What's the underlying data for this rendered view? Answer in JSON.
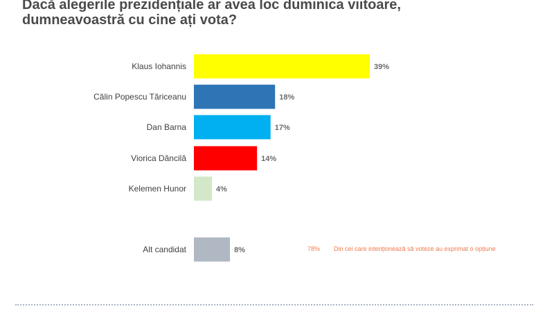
{
  "chart_data": {
    "type": "bar",
    "orientation": "horizontal",
    "title": "Dacă alegerile prezidențiale ar avea loc duminica viitoare, dumneavoastră cu cine ați vota?",
    "title_lines": [
      "Dacă alegerile prezidențiale ar avea loc duminica viitoare,",
      "dumneavoastră cu cine ați vota?"
    ],
    "categories": [
      "Klaus Iohannis",
      "Călin Popescu Tăriceanu",
      "Dan Barna",
      "Viorica Dăncilă",
      "Kelemen Hunor",
      "Alt candidat"
    ],
    "values": [
      39,
      18,
      17,
      14,
      4,
      8
    ],
    "value_labels": [
      "39%",
      "18%",
      "17%",
      "14%",
      "4%",
      "8%"
    ],
    "colors": [
      "#ffff00",
      "#2e75b6",
      "#00b0f0",
      "#ff0000",
      "#d3e8c8",
      "#b0b8c3"
    ],
    "unit": "%",
    "xlim": [
      0,
      39
    ],
    "grid": false,
    "legend": "none"
  },
  "annotation": {
    "percent": "78%",
    "text": "Din cei care intenționează să voteze au exprimat o opțiune",
    "color": "#f07a4c"
  }
}
